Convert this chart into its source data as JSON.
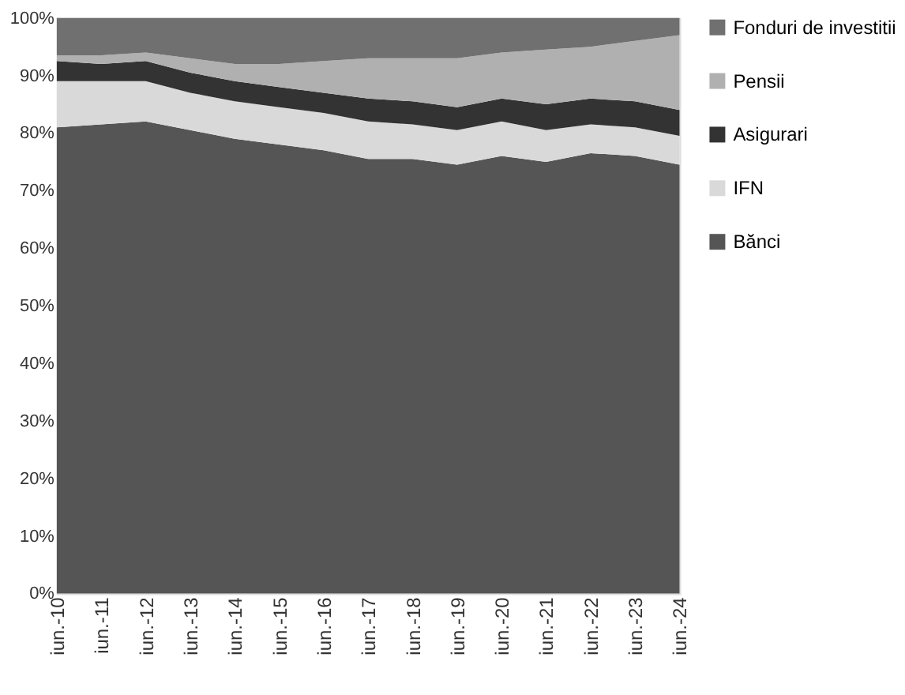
{
  "chart_data": {
    "type": "area",
    "stacked": true,
    "legend": "right",
    "grid": false,
    "categories": [
      "iun.-10",
      "iun.-11",
      "iun.-12",
      "iun.-13",
      "iun.-14",
      "iun.-15",
      "iun.-16",
      "iun.-17",
      "iun.-18",
      "iun.-19",
      "iun.-20",
      "iun.-21",
      "iun.-22",
      "iun.-23",
      "iun.-24"
    ],
    "ylim": [
      0,
      100
    ],
    "yticks": [
      {
        "value": 0,
        "label": "0%"
      },
      {
        "value": 10,
        "label": "10%"
      },
      {
        "value": 20,
        "label": "20%"
      },
      {
        "value": 30,
        "label": "30%"
      },
      {
        "value": 40,
        "label": "40%"
      },
      {
        "value": 50,
        "label": "50%"
      },
      {
        "value": 60,
        "label": "60%"
      },
      {
        "value": 70,
        "label": "70%"
      },
      {
        "value": 80,
        "label": "80%"
      },
      {
        "value": 90,
        "label": "90%"
      },
      {
        "value": 100,
        "label": "100%"
      }
    ],
    "series": [
      {
        "name": "Bănci",
        "color": "#555555",
        "values": [
          81,
          81.5,
          82,
          80.5,
          79,
          78,
          77,
          75.5,
          75.5,
          74.5,
          76,
          75,
          76.5,
          76,
          74.5
        ]
      },
      {
        "name": "IFN",
        "color": "#d9d9d9",
        "values": [
          8,
          7.5,
          7,
          6.5,
          6.5,
          6.5,
          6.5,
          6.5,
          6,
          6,
          6,
          5.5,
          5,
          5,
          5
        ]
      },
      {
        "name": "Asigurari",
        "color": "#333333",
        "values": [
          3.5,
          3,
          3.5,
          3.5,
          3.5,
          3.5,
          3.5,
          4,
          4,
          4,
          4,
          4.5,
          4.5,
          4.5,
          4.5
        ]
      },
      {
        "name": "Pensii",
        "color": "#b0b0b0",
        "values": [
          1,
          1.5,
          1.5,
          2.5,
          3,
          4,
          5.5,
          7,
          7.5,
          8.5,
          8,
          9.5,
          9,
          10.5,
          13
        ]
      },
      {
        "name": "Fonduri de investitii",
        "color": "#707070",
        "values": [
          6.5,
          6.5,
          6,
          7,
          8,
          8,
          7.5,
          7,
          7,
          7,
          6,
          5.5,
          5,
          4,
          3
        ]
      }
    ]
  }
}
